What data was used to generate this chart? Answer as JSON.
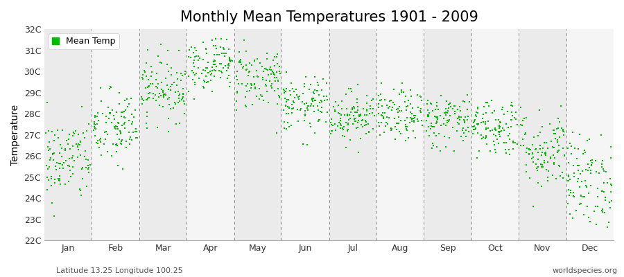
{
  "title": "Monthly Mean Temperatures 1901 - 2009",
  "ylabel": "Temperature",
  "dot_color": "#00bb00",
  "dot_size": 3.5,
  "marker": "s",
  "ylim": [
    22,
    32
  ],
  "ytick_labels": [
    "22C",
    "23C",
    "24C",
    "25C",
    "26C",
    "27C",
    "28C",
    "29C",
    "30C",
    "31C",
    "32C"
  ],
  "ytick_vals": [
    22,
    23,
    24,
    25,
    26,
    27,
    28,
    29,
    30,
    31,
    32
  ],
  "month_labels": [
    "Jan",
    "Feb",
    "Mar",
    "Apr",
    "May",
    "Jun",
    "Jul",
    "Aug",
    "Sep",
    "Oct",
    "Nov",
    "Dec"
  ],
  "month_positions": [
    0.5,
    1.5,
    2.5,
    3.5,
    4.5,
    5.5,
    6.5,
    7.5,
    8.5,
    9.5,
    10.5,
    11.5
  ],
  "dashed_lines": [
    1.0,
    2.0,
    3.0,
    4.0,
    5.0,
    6.0,
    7.0,
    8.0,
    9.0,
    10.0,
    11.0
  ],
  "legend_label": "Mean Temp",
  "subtitle_left": "Latitude 13.25 Longitude 100.25",
  "subtitle_right": "worldspecies.org",
  "strip_colors": [
    "#ebebeb",
    "#f5f5f5"
  ],
  "title_fontsize": 15,
  "axis_fontsize": 10,
  "tick_fontsize": 9,
  "monthly_means": [
    25.8,
    27.3,
    29.2,
    30.4,
    29.7,
    28.4,
    27.9,
    27.9,
    27.7,
    27.4,
    26.3,
    24.8
  ],
  "monthly_stds": [
    1.0,
    0.9,
    0.75,
    0.65,
    0.75,
    0.65,
    0.6,
    0.6,
    0.65,
    0.7,
    0.95,
    1.1
  ]
}
